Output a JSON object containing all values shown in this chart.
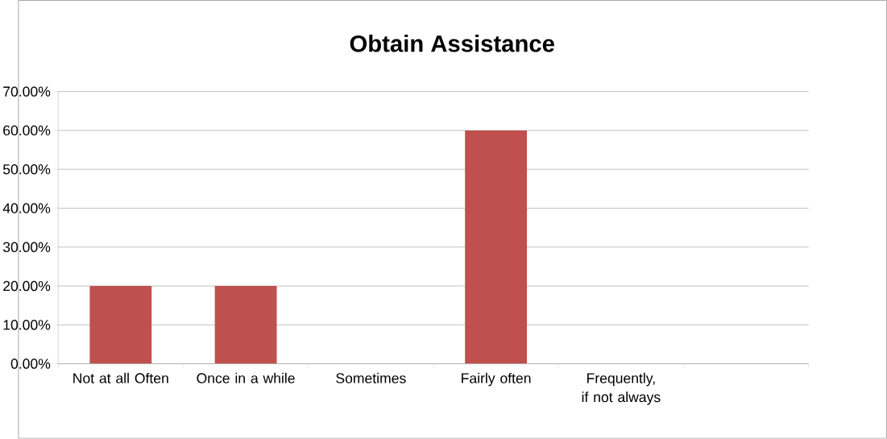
{
  "chart_data": {
    "type": "bar",
    "title": "Obtain Assistance",
    "categories": [
      "Not at all Often",
      "Once in a while",
      "Sometimes",
      "Fairly often",
      "Frequently, if not always",
      null
    ],
    "values": [
      20,
      20,
      0,
      60,
      0,
      0
    ],
    "color": "#c0504d",
    "ylim": [
      0,
      70
    ],
    "yticks": [
      {
        "value": 0,
        "label": "0.00%"
      },
      {
        "value": 10,
        "label": "10.00%"
      },
      {
        "value": 20,
        "label": "20.00%"
      },
      {
        "value": 30,
        "label": "30.00%"
      },
      {
        "value": 40,
        "label": "40.00%"
      },
      {
        "value": 50,
        "label": "50.00%"
      },
      {
        "value": 60,
        "label": "60.00%"
      },
      {
        "value": 70,
        "label": "70.00%"
      }
    ],
    "grid": "y"
  }
}
